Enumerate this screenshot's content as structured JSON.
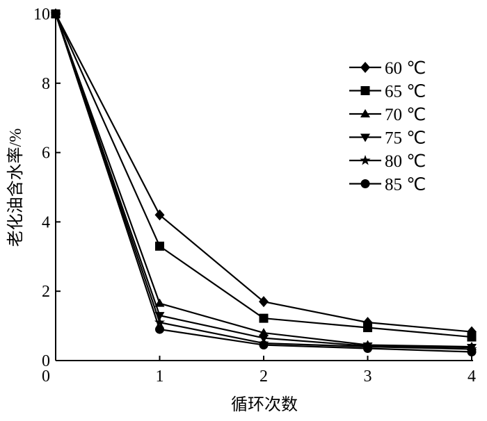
{
  "chart_data": {
    "type": "line",
    "title": "",
    "xlabel": "循环次数",
    "ylabel": "老化油含水率/%",
    "xlim": [
      0,
      4
    ],
    "ylim": [
      0,
      10
    ],
    "xticks": [
      "0",
      "1",
      "2",
      "3",
      "4"
    ],
    "yticks": [
      "0",
      "2",
      "4",
      "6",
      "8",
      "10"
    ],
    "x": [
      0,
      1,
      2,
      3,
      4
    ],
    "legend_position": "top-right",
    "grid": false,
    "series": [
      {
        "name": "60 ℃",
        "marker": "diamond",
        "values": [
          10,
          4.2,
          1.7,
          1.1,
          0.83
        ]
      },
      {
        "name": "65 ℃",
        "marker": "square",
        "values": [
          10,
          3.3,
          1.22,
          0.95,
          0.68
        ]
      },
      {
        "name": "70 ℃",
        "marker": "triangle-up",
        "values": [
          10,
          1.65,
          0.8,
          0.45,
          0.4
        ]
      },
      {
        "name": "75 ℃",
        "marker": "triangle-down",
        "values": [
          10,
          1.3,
          0.65,
          0.42,
          0.38
        ]
      },
      {
        "name": "80 ℃",
        "marker": "star",
        "values": [
          10,
          1.1,
          0.5,
          0.4,
          0.33
        ]
      },
      {
        "name": "85 ℃",
        "marker": "circle",
        "values": [
          10,
          0.9,
          0.45,
          0.35,
          0.25
        ]
      }
    ]
  }
}
